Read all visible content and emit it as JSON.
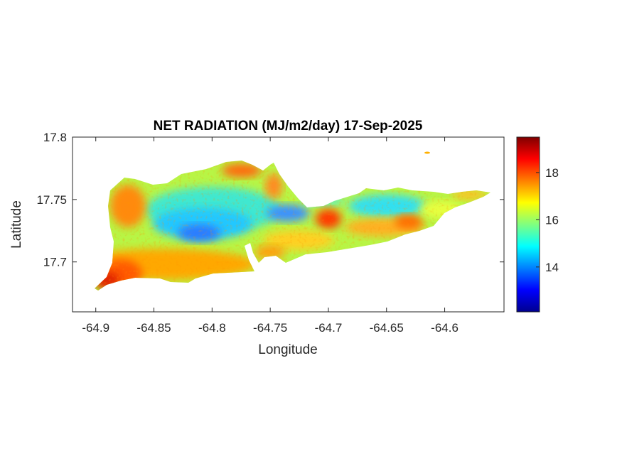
{
  "chart_data": {
    "type": "heatmap",
    "title": "NET RADIATION (MJ/m2/day) 17-Sep-2025",
    "xlabel": "Longitude",
    "ylabel": "Latitude",
    "xlim": [
      -64.92,
      -64.549
    ],
    "ylim": [
      17.66,
      17.8
    ],
    "xticks": [
      -64.9,
      -64.85,
      -64.8,
      -64.75,
      -64.7,
      -64.65,
      -64.6
    ],
    "xtick_labels": [
      "-64.9",
      "-64.85",
      "-64.8",
      "-64.75",
      "-64.7",
      "-64.65",
      "-64.6"
    ],
    "yticks": [
      17.7,
      17.75,
      17.8
    ],
    "ytick_labels": [
      "17.7",
      "17.75",
      "17.8"
    ],
    "colormap": "jet",
    "colorbar": {
      "range": [
        12.1,
        19.5
      ],
      "ticks": [
        14,
        16,
        18
      ],
      "tick_labels": [
        "14",
        "16",
        "18"
      ],
      "location": "right"
    },
    "grid": false,
    "value_summary": {
      "interior_low": 13,
      "south_coast_high": 18.5,
      "typical": 16
    }
  }
}
